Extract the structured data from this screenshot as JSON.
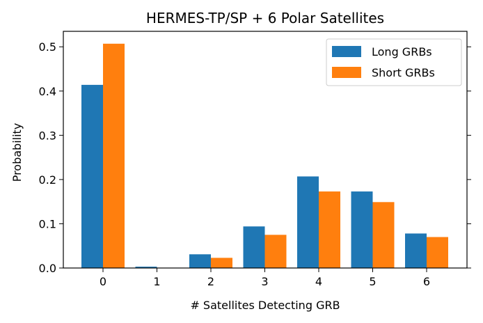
{
  "chart_data": {
    "type": "bar",
    "title": "HERMES-TP/SP + 6 Polar Satellites",
    "xlabel": "# Satellites Detecting GRB",
    "ylabel": "Probability",
    "categories": [
      "0",
      "1",
      "2",
      "3",
      "4",
      "5",
      "6"
    ],
    "yticks": [
      "0.0",
      "0.1",
      "0.2",
      "0.3",
      "0.4",
      "0.5"
    ],
    "ylim": [
      0,
      0.535
    ],
    "grid": false,
    "legend_position": "top-right",
    "series": [
      {
        "name": "Long GRBs",
        "color": "#1f77b4",
        "values": [
          0.414,
          0.003,
          0.031,
          0.094,
          0.207,
          0.173,
          0.078
        ]
      },
      {
        "name": "Short GRBs",
        "color": "#ff7f0e",
        "values": [
          0.507,
          0.0,
          0.023,
          0.075,
          0.173,
          0.149,
          0.07
        ]
      }
    ]
  }
}
